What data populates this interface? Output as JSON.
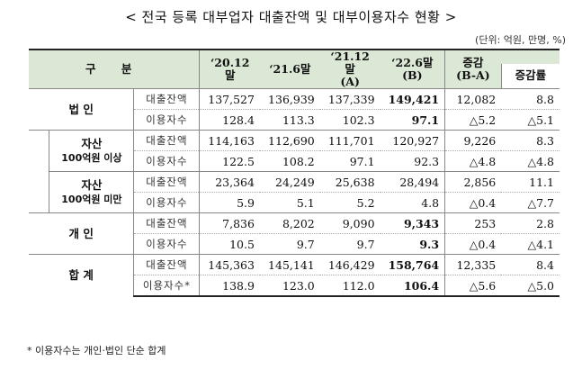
{
  "title": "< 전국 등록 대부업자 대출잔액 및 대부이용자수 현황 >",
  "unit": "(단위: 억원, 만명, %)",
  "header": {
    "category": "구  분",
    "col1": "‘20.12말",
    "col2": "‘21.6말",
    "col3_line1": "‘21.12말",
    "col3_line2": "(A)",
    "col4_line1": "‘22.6말",
    "col4_line2": "(B)",
    "col5_line1": "증감",
    "col5_line2": "(B-A)",
    "col6": "증감률"
  },
  "groups": [
    {
      "name_line1": "법 인",
      "name_line2": "",
      "rows": [
        {
          "label": "대출잔액",
          "values": [
            "137,527",
            "136,939",
            "137,339",
            "149,421",
            "12,082",
            "8.8"
          ]
        },
        {
          "label": "이용자수",
          "values": [
            "128.4",
            "113.3",
            "102.3",
            "97.1",
            "△5.2",
            "△5.1"
          ]
        }
      ]
    },
    {
      "name_line1": "자산",
      "name_line2": "100억원 이상",
      "rows": [
        {
          "label": "대출잔액",
          "values": [
            "114,163",
            "112,690",
            "111,701",
            "120,927",
            "9,226",
            "8.3"
          ]
        },
        {
          "label": "이용자수",
          "values": [
            "122.5",
            "108.2",
            "97.1",
            "92.3",
            "△4.8",
            "△4.8"
          ]
        }
      ]
    },
    {
      "name_line1": "자산",
      "name_line2": "100억원 미만",
      "rows": [
        {
          "label": "대출잔액",
          "values": [
            "23,364",
            "24,249",
            "25,638",
            "28,494",
            "2,856",
            "11.1"
          ]
        },
        {
          "label": "이용자수",
          "values": [
            "5.9",
            "5.1",
            "5.2",
            "4.8",
            "△0.4",
            "△7.7"
          ]
        }
      ]
    },
    {
      "name_line1": "개 인",
      "name_line2": "",
      "rows": [
        {
          "label": "대출잔액",
          "values": [
            "7,836",
            "8,202",
            "9,090",
            "9,343",
            "253",
            "2.8"
          ]
        },
        {
          "label": "이용자수",
          "values": [
            "10.5",
            "9.7",
            "9.7",
            "9.3",
            "△0.4",
            "△4.1"
          ]
        }
      ]
    },
    {
      "name_line1": "합 계",
      "name_line2": "",
      "rows": [
        {
          "label": "대출잔액",
          "values": [
            "145,363",
            "145,141",
            "146,429",
            "158,764",
            "12,335",
            "8.4"
          ]
        },
        {
          "label": "이용자수*",
          "values": [
            "138.9",
            "123.0",
            "112.0",
            "106.4",
            "△5.6",
            "△5.0"
          ]
        }
      ]
    }
  ],
  "note": "* 이용자수는 개인·법인 단순 합계"
}
